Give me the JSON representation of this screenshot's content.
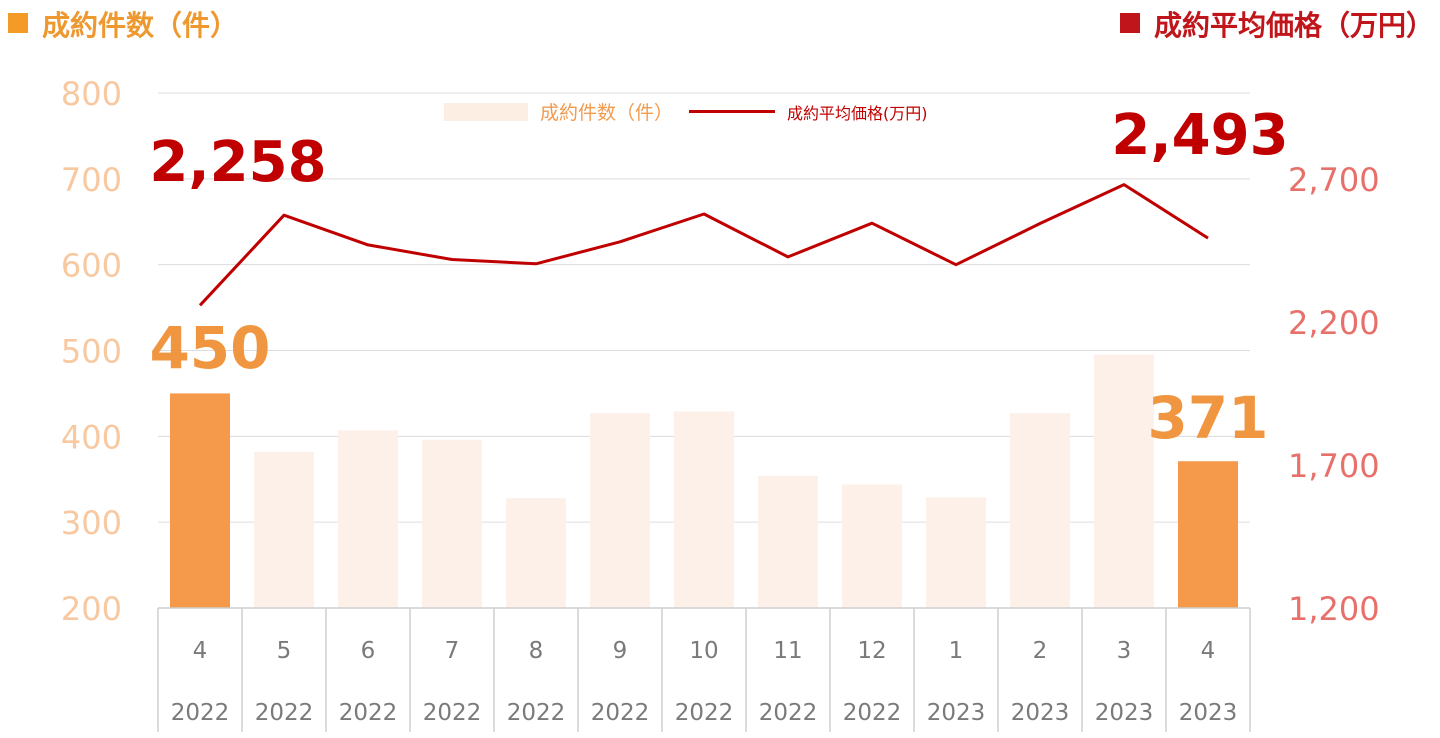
{
  "header": {
    "left_title": "成約件数（件）",
    "right_title": "成約平均価格（万円）"
  },
  "legend": {
    "bar_label": "成約件数（件）",
    "line_label": "成約平均価格(万円)"
  },
  "colors": {
    "bar_highlight": "#f5994a",
    "bar_normal": "#fdf0e8",
    "line": "#c00000",
    "left_axis_text": "#f8c8a0",
    "right_axis_text": "#e8706a",
    "count_callout": "#f19640",
    "price_callout": "#c00000",
    "grid": "#dcdcdc"
  },
  "chart_data": {
    "type": "bar",
    "categories": [
      {
        "month": "4",
        "year": "2022"
      },
      {
        "month": "5",
        "year": "2022"
      },
      {
        "month": "6",
        "year": "2022"
      },
      {
        "month": "7",
        "year": "2022"
      },
      {
        "month": "8",
        "year": "2022"
      },
      {
        "month": "9",
        "year": "2022"
      },
      {
        "month": "10",
        "year": "2022"
      },
      {
        "month": "11",
        "year": "2022"
      },
      {
        "month": "12",
        "year": "2022"
      },
      {
        "month": "1",
        "year": "2023"
      },
      {
        "month": "2",
        "year": "2023"
      },
      {
        "month": "3",
        "year": "2023"
      },
      {
        "month": "4",
        "year": "2023"
      }
    ],
    "series": [
      {
        "name": "成約件数（件）",
        "type": "bar",
        "axis": "left",
        "values": [
          450,
          382,
          407,
          396,
          328,
          427,
          429,
          354,
          344,
          329,
          427,
          495,
          371
        ],
        "highlight_indices": [
          0,
          12
        ]
      },
      {
        "name": "成約平均価格(万円)",
        "type": "line",
        "axis": "right",
        "values": [
          2258,
          2573,
          2469,
          2418,
          2403,
          2480,
          2577,
          2427,
          2545,
          2400,
          2544,
          2680,
          2493
        ]
      }
    ],
    "left_axis": {
      "ylim": [
        200,
        800
      ],
      "ticks": [
        "200",
        "300",
        "400",
        "500",
        "600",
        "700",
        "800"
      ]
    },
    "right_axis": {
      "ylim": [
        1200,
        2700
      ],
      "ticks": [
        "1,200",
        "1,700",
        "2,200",
        "2,700"
      ]
    },
    "annotations": {
      "price_first": "2,258",
      "price_last": "2,493",
      "count_first": "450",
      "count_last": "371"
    },
    "grid": true,
    "legend_position": "top-center"
  }
}
